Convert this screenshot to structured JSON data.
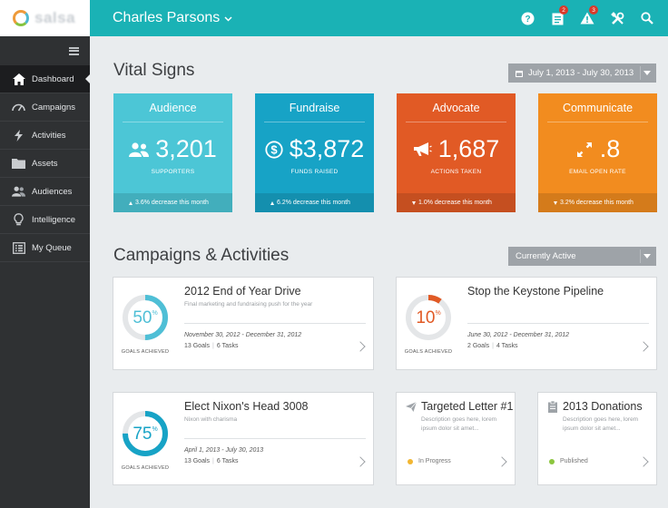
{
  "app": {
    "logo_text": "salsa",
    "user_name": "Charles Parsons"
  },
  "header": {
    "icons": [
      "help-icon",
      "tasks-icon",
      "alerts-icon",
      "tools-icon",
      "search-icon"
    ],
    "tasks_badge": "2",
    "alerts_badge": "3"
  },
  "sidebar": {
    "items": [
      {
        "label": "Dashboard",
        "icon": "home-icon",
        "active": true
      },
      {
        "label": "Campaigns",
        "icon": "gauge-icon"
      },
      {
        "label": "Activities",
        "icon": "bolt-icon"
      },
      {
        "label": "Assets",
        "icon": "folder-icon"
      },
      {
        "label": "Audiences",
        "icon": "users-icon"
      },
      {
        "label": "Intelligence",
        "icon": "lightbulb-icon"
      },
      {
        "label": "My Queue",
        "icon": "list-icon"
      }
    ]
  },
  "vital_signs": {
    "title": "Vital Signs",
    "date_range": "July 1, 2013 - July 30, 2013",
    "tiles": [
      {
        "title": "Audience",
        "value": "3,201",
        "label": "SUPPORTERS",
        "trend": "up",
        "change": "3.6% decrease this month",
        "color": "#4cc6d6",
        "icon": "users-icon"
      },
      {
        "title": "Fundraise",
        "value": "$3,872",
        "label": "FUNDS RAISED",
        "trend": "up",
        "change": "6.2% decrease this month",
        "color": "#17a3c6",
        "icon": "dollar-icon"
      },
      {
        "title": "Advocate",
        "value": "1,687",
        "label": "ACTIONS TAKEN",
        "trend": "down",
        "change": "1.0% decrease this month",
        "color": "#e15a25",
        "icon": "megaphone-icon"
      },
      {
        "title": "Communicate",
        "value": ".8",
        "label": "EMAIL OPEN RATE",
        "trend": "down",
        "change": "3.2% decrease this month",
        "color": "#f28c1f",
        "icon": "expand-icon"
      }
    ]
  },
  "campaigns": {
    "title": "Campaigns & Activities",
    "filter": "Currently Active",
    "goals_achieved_label": "GOALS ACHIEVED",
    "cards": [
      {
        "title": "2012 End of Year Drive",
        "desc": "Final marketing and fundraising push for the year",
        "dates": "November 30, 2012 - December 31, 2012",
        "goals": "13 Goals",
        "tasks": "6 Tasks",
        "percent": 50,
        "percent_text": "50",
        "color": "#4fbfd6"
      },
      {
        "title": "Stop the Keystone Pipeline",
        "desc": "",
        "dates": "June 30, 2012 - December 31, 2012",
        "goals": "2 Goals",
        "tasks": "4 Tasks",
        "percent": 10,
        "percent_text": "10",
        "color": "#e15a25"
      },
      {
        "title": "Elect Nixon's Head 3008",
        "desc": "Nixon with charisma",
        "dates": "April 1, 2013 - July 30, 2013",
        "goals": "13 Goals",
        "tasks": "6 Tasks",
        "percent": 75,
        "percent_text": "75",
        "color": "#17a3c6"
      }
    ],
    "small_cards": [
      {
        "title": "Targeted Letter #1",
        "desc": "Description goes here, lorem ipsum dolor sit amet...",
        "status": "In Progress",
        "status_color": "#f2b632",
        "icon": "send-icon"
      },
      {
        "title": "2013 Donations",
        "desc": "Description goes here, lorem ipsum dolor sit amet...",
        "status": "Published",
        "status_color": "#8cc63f",
        "icon": "clipboard-icon"
      }
    ]
  }
}
